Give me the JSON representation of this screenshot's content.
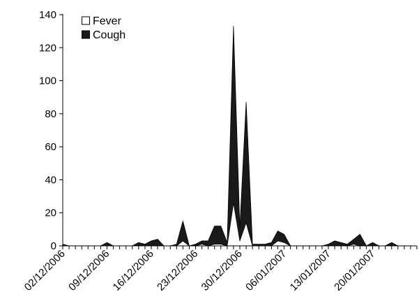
{
  "chart_data": {
    "type": "area",
    "stacked": true,
    "title": "",
    "xlabel": "",
    "ylabel": "",
    "x": [
      "02/12/2006",
      "03/12/2006",
      "04/12/2006",
      "05/12/2006",
      "06/12/2006",
      "07/12/2006",
      "08/12/2006",
      "09/12/2006",
      "10/12/2006",
      "11/12/2006",
      "12/12/2006",
      "13/12/2006",
      "14/12/2006",
      "15/12/2006",
      "16/12/2006",
      "17/12/2006",
      "18/12/2006",
      "19/12/2006",
      "20/12/2006",
      "21/12/2006",
      "22/12/2006",
      "23/12/2006",
      "24/12/2006",
      "25/12/2006",
      "26/12/2006",
      "27/12/2006",
      "28/12/2006",
      "29/12/2006",
      "30/12/2006",
      "31/12/2006",
      "01/01/2007",
      "02/01/2007",
      "03/01/2007",
      "04/01/2007",
      "05/01/2007",
      "06/01/2007",
      "07/01/2007",
      "08/01/2007",
      "09/01/2007",
      "10/01/2007",
      "11/01/2007",
      "12/01/2007",
      "13/01/2007",
      "14/01/2007",
      "15/01/2007",
      "16/01/2007",
      "17/01/2007",
      "18/01/2007",
      "19/01/2007",
      "20/01/2007",
      "21/01/2007",
      "22/01/2007",
      "23/01/2007",
      "24/01/2007",
      "25/01/2007",
      "26/01/2007"
    ],
    "x_tick_labels": [
      "02/12/2006",
      "09/12/2006",
      "16/12/2006",
      "23/12/2006",
      "30/12/2006",
      "06/01/2007",
      "13/01/2007",
      "20/01/2007"
    ],
    "series": [
      {
        "name": "Fever",
        "color": "#ffffff",
        "values": [
          0,
          0,
          0,
          0,
          0,
          0,
          0,
          0,
          0,
          0,
          0,
          0,
          0,
          0,
          0,
          0,
          0,
          0,
          0,
          3,
          0,
          0,
          1,
          0,
          1,
          1,
          0,
          26,
          3,
          14,
          0,
          0,
          0,
          0,
          3,
          2,
          0,
          0,
          0,
          0,
          0,
          0,
          0,
          0,
          0,
          0,
          1,
          0,
          0,
          0,
          0,
          0,
          0,
          0,
          0,
          0
        ]
      },
      {
        "name": "Cough",
        "color": "#1a1a1a",
        "values": [
          1,
          0,
          0,
          0,
          0,
          0,
          0,
          2,
          0,
          0,
          0,
          0,
          2,
          1,
          3,
          4,
          0,
          0,
          1,
          12,
          0,
          1,
          2,
          3,
          11,
          11,
          2,
          107,
          8,
          73,
          1,
          1,
          1,
          2,
          6,
          5,
          0,
          0,
          0,
          0,
          0,
          0,
          1,
          3,
          2,
          1,
          3,
          7,
          0,
          2,
          0,
          0,
          2,
          0,
          0,
          0
        ]
      }
    ],
    "ylim": [
      0,
      140
    ],
    "yticks": [
      0,
      20,
      40,
      60,
      80,
      100,
      120,
      140
    ],
    "grid": false,
    "legend_position": "top-left"
  }
}
